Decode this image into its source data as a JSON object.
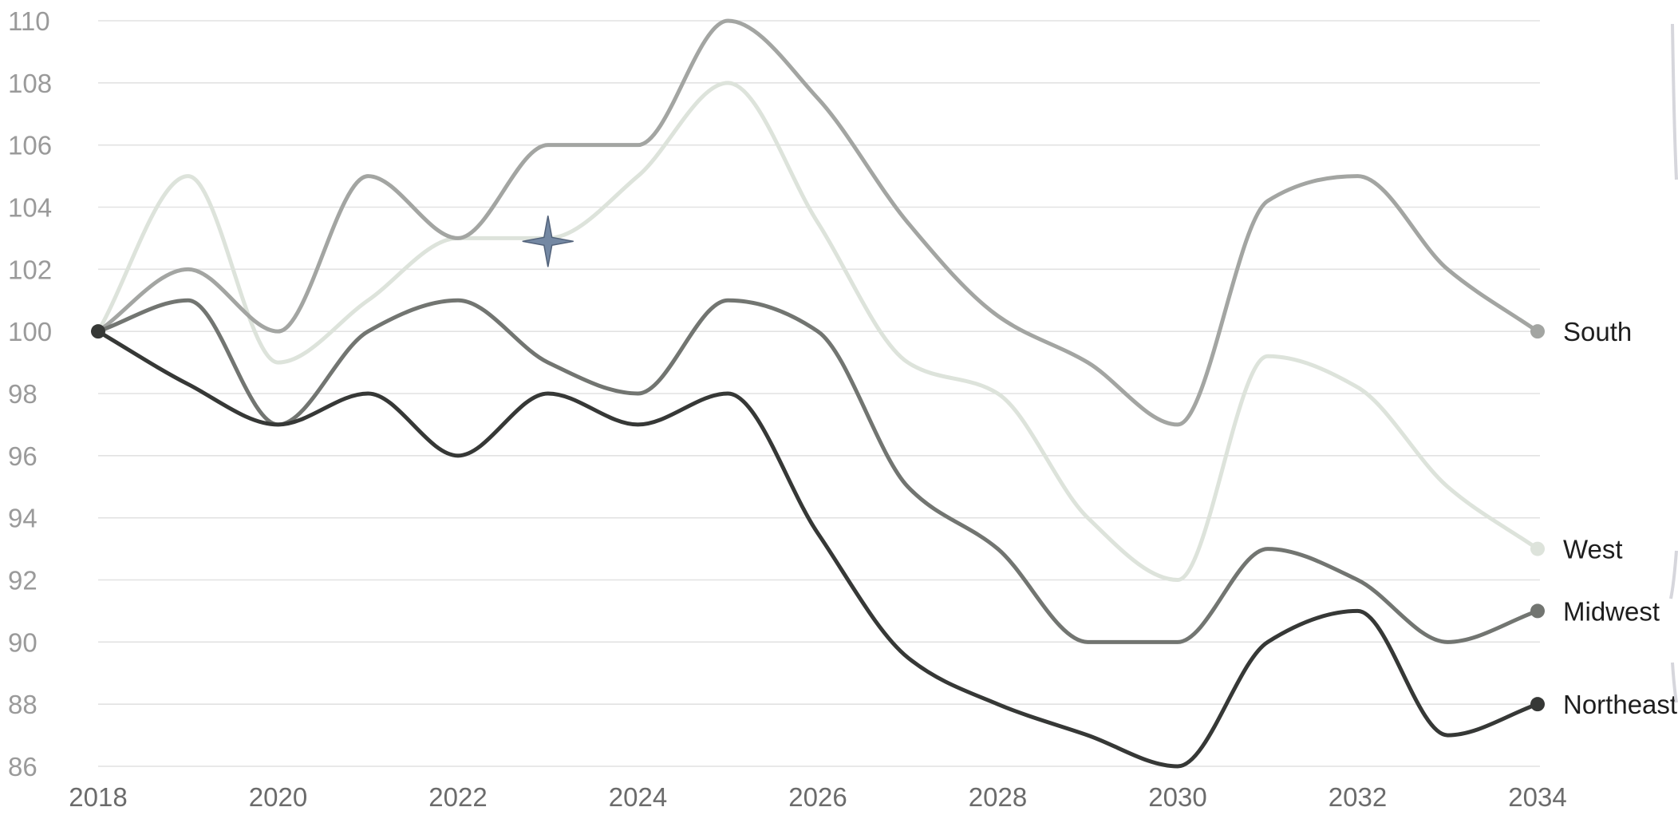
{
  "chart_data": {
    "type": "line",
    "title": "",
    "xlabel": "",
    "ylabel": "",
    "x": [
      2018,
      2019,
      2020,
      2021,
      2022,
      2023,
      2024,
      2025,
      2026,
      2027,
      2028,
      2029,
      2030,
      2031,
      2032,
      2033,
      2034
    ],
    "x_ticks": [
      "2018",
      "2020",
      "2022",
      "2024",
      "2026",
      "2028",
      "2030",
      "2032",
      "2034"
    ],
    "y_ticks": [
      "86",
      "88",
      "90",
      "92",
      "94",
      "96",
      "98",
      "100",
      "102",
      "104",
      "106",
      "108",
      "110"
    ],
    "ylim": [
      86,
      110
    ],
    "xlim": [
      2018,
      2034
    ],
    "grid": true,
    "legend": "end-of-line labels (right)",
    "series": [
      {
        "name": "South",
        "color": "#a3a5a2",
        "values": [
          100,
          102,
          100,
          105,
          103,
          106,
          106,
          110,
          107.5,
          103.5,
          100.5,
          99,
          97,
          104.2,
          105,
          102,
          100
        ]
      },
      {
        "name": "West",
        "color": "#dde3db",
        "values": [
          100,
          105,
          99,
          101,
          103,
          103,
          105,
          108,
          103.5,
          99,
          98,
          94,
          92,
          99.2,
          98.2,
          95,
          93
        ]
      },
      {
        "name": "Midwest",
        "color": "#727571",
        "values": [
          100,
          101,
          97,
          100,
          101,
          99,
          98,
          101,
          100,
          95,
          93,
          90,
          90,
          93,
          92,
          90,
          91
        ]
      },
      {
        "name": "Northeast",
        "color": "#363836",
        "values": [
          100,
          98.3,
          97,
          98,
          96,
          98,
          97,
          98,
          93.5,
          89.5,
          88,
          87,
          86,
          90,
          91,
          87,
          88
        ]
      }
    ],
    "annotation": {
      "icon": "four-point-star-icon",
      "color": "#7488a3",
      "x": 2023,
      "y": 102.9
    }
  }
}
